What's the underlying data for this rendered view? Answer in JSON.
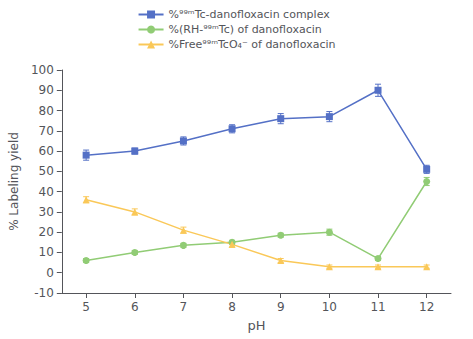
{
  "chart_data": {
    "type": "line",
    "xlabel": "pH",
    "ylabel": "% Labeling yield",
    "x": [
      5,
      6,
      7,
      8,
      9,
      10,
      11,
      12
    ],
    "xlim": [
      4.5,
      12.5
    ],
    "xticks": [
      5,
      6,
      7,
      8,
      9,
      10,
      11,
      12
    ],
    "ylim": [
      -10,
      100
    ],
    "yticks": [
      -10,
      0,
      10,
      20,
      30,
      40,
      50,
      60,
      70,
      80,
      90,
      100
    ],
    "grid": false,
    "legend": "top",
    "series": [
      {
        "name": "%⁹⁹ᵐTc-danofloxacin complex",
        "marker": "square",
        "values": [
          58,
          60,
          65,
          71,
          76,
          77,
          90,
          51
        ],
        "errors": [
          2.5,
          1.5,
          2.0,
          2.0,
          2.5,
          2.5,
          3.0,
          2.0
        ]
      },
      {
        "name": "%(RH-⁹⁹ᵐTc) of danofloxacin",
        "marker": "circle",
        "values": [
          6,
          10,
          13.5,
          15,
          18.5,
          20,
          7,
          45
        ],
        "errors": [
          1.0,
          1.0,
          1.0,
          1.0,
          1.0,
          1.5,
          1.0,
          2.0
        ]
      },
      {
        "name": "%Free⁹⁹ᵐTcO₄⁻ of danofloxacin",
        "marker": "triangle",
        "values": [
          36,
          30,
          21,
          14,
          6,
          3,
          3,
          3
        ],
        "errors": [
          1.5,
          1.5,
          1.5,
          1.5,
          1.0,
          0.8,
          0.8,
          0.8
        ]
      }
    ]
  }
}
